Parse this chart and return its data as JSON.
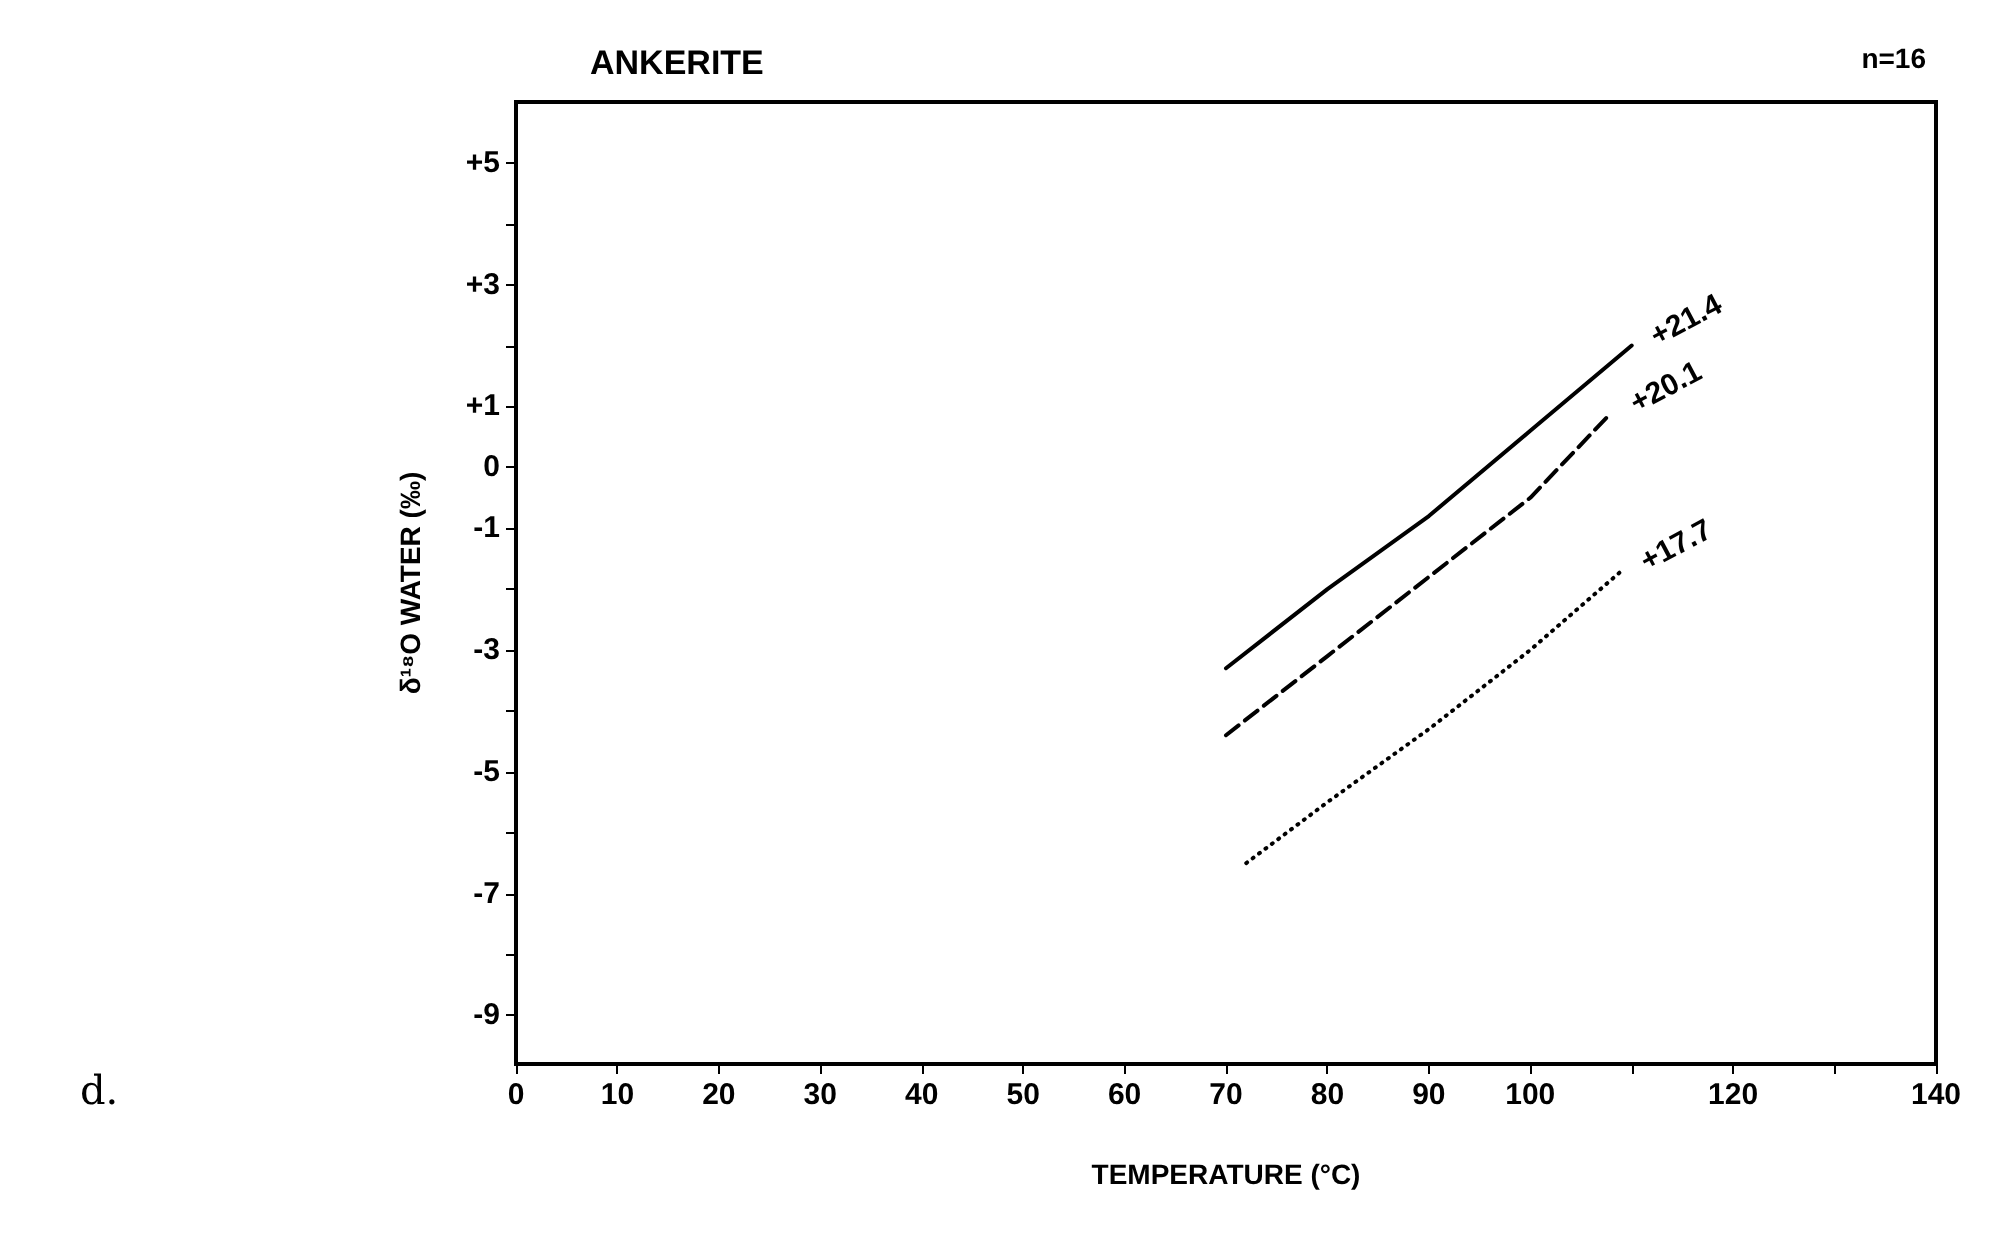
{
  "chart_data": {
    "type": "line",
    "title": "ANKERITE",
    "xlabel": "TEMPERATURE (°C)",
    "ylabel": "δ¹⁸O WATER (‰)",
    "annotations": [
      "n=16",
      "d."
    ],
    "xlim": [
      0,
      140
    ],
    "xticks": [
      0,
      10,
      20,
      30,
      40,
      50,
      60,
      70,
      80,
      90,
      100,
      {
        "value": 110,
        "label": null
      },
      120,
      {
        "value": 130,
        "label": null
      },
      140
    ],
    "ylim": [
      -9.8,
      6
    ],
    "yticks": [
      {
        "value": 5,
        "label": "+5"
      },
      {
        "value": 4,
        "label": null
      },
      {
        "value": 3,
        "label": "+3"
      },
      {
        "value": 2,
        "label": null
      },
      {
        "value": 1,
        "label": "+1"
      },
      0,
      -1,
      {
        "value": -2,
        "label": null
      },
      -3,
      {
        "value": -4,
        "label": null
      },
      -5,
      {
        "value": -6,
        "label": null
      },
      -7,
      {
        "value": -8,
        "label": null
      },
      -9
    ],
    "grid": false,
    "legend": false,
    "marker": "none",
    "series": [
      {
        "name": "+21.4",
        "color": "#000000",
        "line_style": "solid",
        "x": [
          70,
          80,
          90,
          100,
          110
        ],
        "values": [
          -3.3,
          -2.0,
          -0.8,
          0.6,
          2.0
        ]
      },
      {
        "name": "+20.1",
        "color": "#000000",
        "line_style": "dashed",
        "x": [
          70,
          80,
          90,
          100,
          108
        ],
        "values": [
          -4.4,
          -3.1,
          -1.8,
          -0.5,
          0.9
        ]
      },
      {
        "name": "+17.7",
        "color": "#000000",
        "line_style": "dotted",
        "x": [
          72,
          80,
          90,
          100,
          109
        ],
        "values": [
          -6.5,
          -5.5,
          -4.3,
          -3.0,
          -1.7
        ]
      }
    ]
  }
}
